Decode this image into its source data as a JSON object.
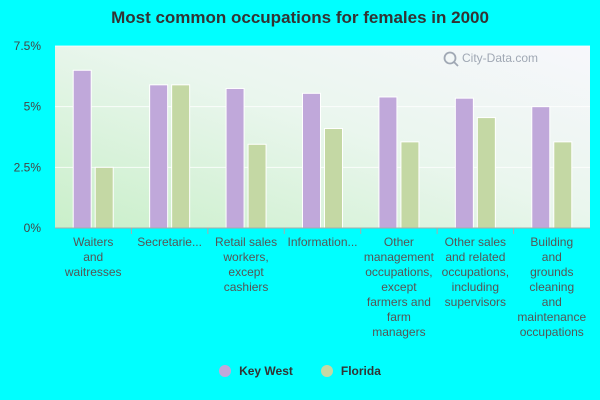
{
  "chart_data": {
    "type": "bar",
    "title": "Most common occupations for females in 2000",
    "xlabel": "",
    "ylabel": "",
    "categories": [
      "Waiters and waitresses",
      "Secretarie...",
      "Retail sales workers, except cashiers",
      "Information...",
      "Other management occupations, except farmers and farm managers",
      "Other sales and related occupations, including supervisors",
      "Building and grounds cleaning and maintenance occupations"
    ],
    "category_lines": [
      [
        "Waiters",
        "and",
        "waitresses"
      ],
      [
        "Secretarie..."
      ],
      [
        "Retail sales",
        "workers,",
        "except",
        "cashiers"
      ],
      [
        "Information..."
      ],
      [
        "Other",
        "management",
        "occupations,",
        "except",
        "farmers and",
        "farm",
        "managers"
      ],
      [
        "Other sales",
        "and related",
        "occupations,",
        "including",
        "supervisors"
      ],
      [
        "Building",
        "and",
        "grounds",
        "cleaning",
        "and",
        "maintenance",
        "occupations"
      ]
    ],
    "series": [
      {
        "name": "Key West",
        "values": [
          6.5,
          5.9,
          5.75,
          5.55,
          5.4,
          5.35,
          5.0
        ],
        "color": "#c0a8da"
      },
      {
        "name": "Florida",
        "values": [
          2.5,
          5.9,
          3.45,
          4.1,
          3.55,
          4.55,
          3.55
        ],
        "color": "#c4d8a4"
      }
    ],
    "ylim": [
      0,
      7.5
    ],
    "yticks": [
      0,
      2.5,
      5,
      7.5
    ],
    "ytick_labels": [
      "0%",
      "2.5%",
      "5%",
      "7.5%"
    ],
    "grid": true,
    "legend_position": "bottom"
  },
  "watermark": "City-Data.com"
}
